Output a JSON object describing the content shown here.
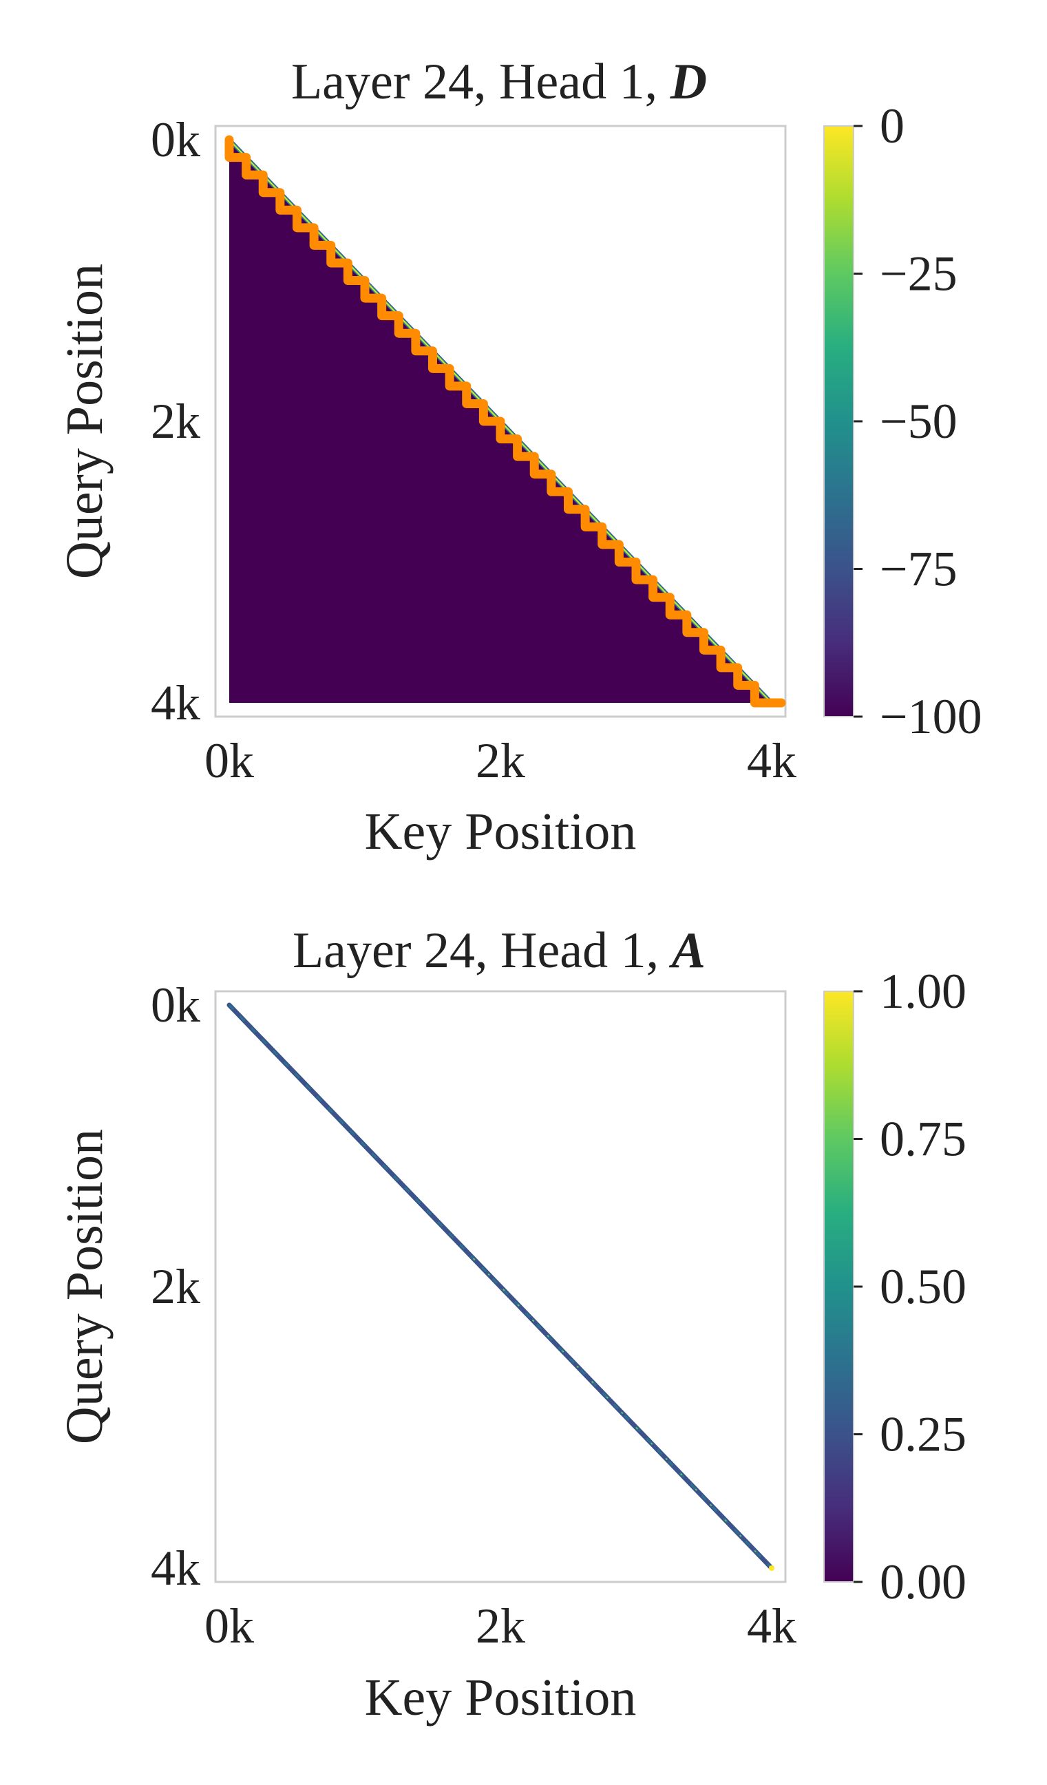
{
  "chart_data": [
    {
      "type": "heatmap",
      "title": "Layer 24, Head 1, ",
      "title_symbol": "D",
      "xlabel": "Key Position",
      "ylabel": "Query Position",
      "xlim": [
        0,
        4096
      ],
      "ylim": [
        4096,
        0
      ],
      "x_ticks": [
        0,
        2048,
        4096
      ],
      "x_tick_labels": [
        "0k",
        "2k",
        "4k"
      ],
      "y_ticks": [
        0,
        2048,
        4096
      ],
      "y_tick_labels": [
        "0k",
        "2k",
        "4k"
      ],
      "grid": false,
      "colormap": "viridis",
      "colorbar": {
        "range": [
          -100,
          0
        ],
        "ticks": [
          0,
          -25,
          -50,
          -75,
          -100
        ],
        "tick_labels": [
          "0",
          "−25",
          "−50",
          "−75",
          "−100"
        ]
      },
      "description": "Lower-triangular matrix; strict lower region clipped at -100, values rise to 0 along the diagonal",
      "floor_value": -100,
      "diagonal_value": 0,
      "overlay": {
        "color": "#ff8c00",
        "kind": "staircase",
        "step_size": 128,
        "x_range": [
          0,
          4096
        ],
        "y_range": [
          0,
          4096
        ]
      }
    },
    {
      "type": "heatmap",
      "title": "Layer 24, Head 1, ",
      "title_symbol": "A",
      "xlabel": "Key Position",
      "ylabel": "Query Position",
      "xlim": [
        0,
        4096
      ],
      "ylim": [
        4096,
        0
      ],
      "x_ticks": [
        0,
        2048,
        4096
      ],
      "x_tick_labels": [
        "0k",
        "2k",
        "4k"
      ],
      "y_ticks": [
        0,
        2048,
        4096
      ],
      "y_tick_labels": [
        "0k",
        "2k",
        "4k"
      ],
      "grid": false,
      "colormap": "viridis",
      "colorbar": {
        "range": [
          0.0,
          1.0
        ],
        "ticks": [
          1.0,
          0.75,
          0.5,
          0.25,
          0.0
        ],
        "tick_labels": [
          "1.00",
          "0.75",
          "0.50",
          "0.25",
          "0.00"
        ]
      },
      "description": "Attention weights concentrated on a thin band along the main diagonal; near 0 elsewhere",
      "diagonal_value_typical": 0.25,
      "diagonal_value_last": 1.0
    }
  ]
}
